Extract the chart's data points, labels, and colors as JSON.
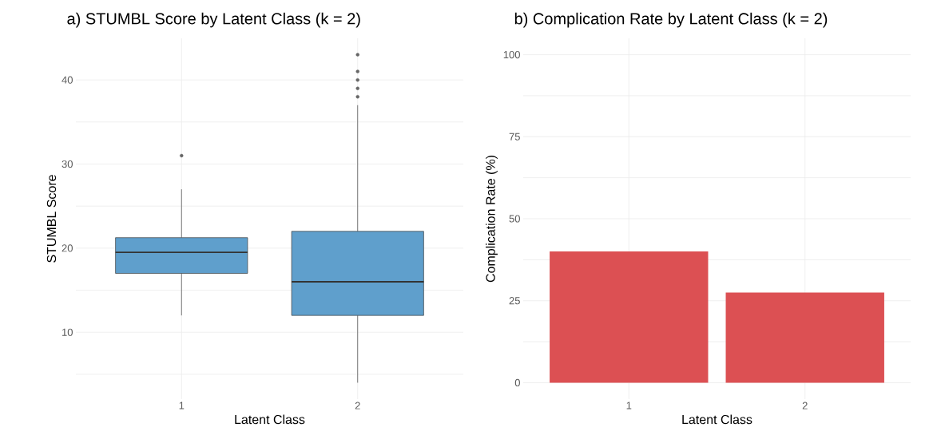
{
  "chart_data": [
    {
      "type": "box",
      "title": "a) STUMBL Score by Latent Class (k = 2)",
      "xlabel": "Latent Class",
      "ylabel": "STUMBL Score",
      "categories": [
        "1",
        "2"
      ],
      "color": "#5f9fcc",
      "boxes": [
        {
          "low": 12,
          "q1": 17,
          "median": 19.5,
          "q3": 21.25,
          "high": 27,
          "outliers": [
            31
          ]
        },
        {
          "low": 4,
          "q1": 12,
          "median": 16,
          "q3": 22,
          "high": 37,
          "outliers": [
            38,
            39,
            40,
            41,
            43
          ]
        }
      ],
      "ylim": [
        2.05,
        44.95
      ],
      "yticks": [
        {
          "value": 5,
          "label": null
        },
        10,
        {
          "value": 15,
          "label": null
        },
        20,
        {
          "value": 25,
          "label": null
        },
        30,
        {
          "value": 35,
          "label": null
        },
        40
      ],
      "grid": true
    },
    {
      "type": "bar",
      "title": "b) Complication Rate by Latent Class (k = 2)",
      "xlabel": "Latent Class",
      "ylabel": "Complication Rate (%)",
      "categories": [
        "1",
        "2"
      ],
      "values": [
        40,
        27.5
      ],
      "color": "#dc5053",
      "ylim": [
        -5,
        105
      ],
      "yticks": [
        0,
        {
          "value": 12.5,
          "label": null
        },
        25,
        {
          "value": 37.5,
          "label": null
        },
        50,
        {
          "value": 62.5,
          "label": null
        },
        75,
        {
          "value": 87.5,
          "label": null
        },
        100
      ],
      "grid": true
    }
  ]
}
